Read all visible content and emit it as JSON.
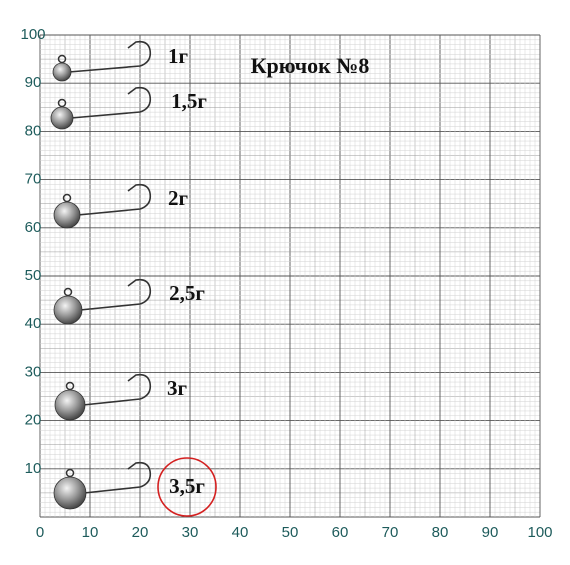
{
  "title": "Крючок №8",
  "x_axis": {
    "labels": [
      0,
      10,
      20,
      30,
      40,
      50,
      60,
      70,
      80,
      90,
      100
    ]
  },
  "y_axis": {
    "labels": [
      0,
      10,
      20,
      30,
      40,
      50,
      60,
      70,
      80,
      90,
      100
    ]
  },
  "items": [
    {
      "label": "1г"
    },
    {
      "label": "1,5г"
    },
    {
      "label": "2г"
    },
    {
      "label": "2,5г"
    },
    {
      "label": "3г"
    },
    {
      "label": "3,5г"
    }
  ]
}
